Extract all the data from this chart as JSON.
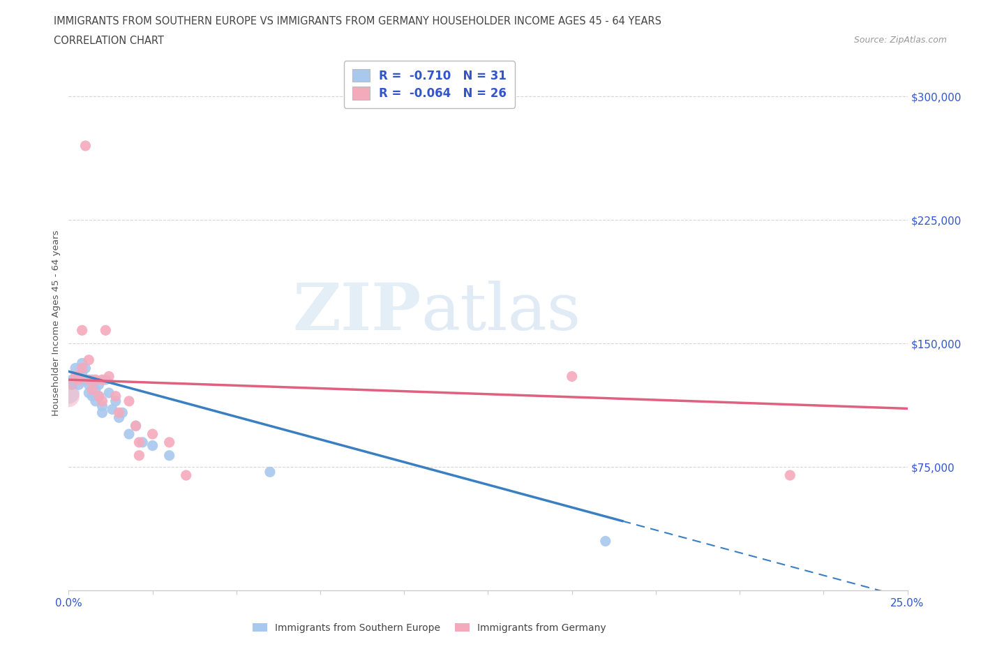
{
  "title_line1": "IMMIGRANTS FROM SOUTHERN EUROPE VS IMMIGRANTS FROM GERMANY HOUSEHOLDER INCOME AGES 45 - 64 YEARS",
  "title_line2": "CORRELATION CHART",
  "source": "Source: ZipAtlas.com",
  "ylabel": "Householder Income Ages 45 - 64 years",
  "xlim": [
    0.0,
    0.25
  ],
  "ylim": [
    0,
    325000
  ],
  "yticks": [
    75000,
    150000,
    225000,
    300000
  ],
  "ytick_labels": [
    "$75,000",
    "$150,000",
    "$225,000",
    "$300,000"
  ],
  "legend_R1": "R =  -0.710",
  "legend_N1": "N = 31",
  "legend_R2": "R =  -0.064",
  "legend_N2": "N = 26",
  "color_blue": "#A8C8EE",
  "color_pink": "#F5AABC",
  "color_blue_line": "#3A7FC1",
  "color_pink_line": "#E06080",
  "color_text": "#3355CC",
  "watermark_zip": "ZIP",
  "watermark_atlas": "atlas",
  "bg_color": "#FFFFFF",
  "grid_color": "#CCCCCC",
  "blue_scatter_x": [
    0.001,
    0.002,
    0.003,
    0.003,
    0.004,
    0.004,
    0.005,
    0.005,
    0.006,
    0.006,
    0.007,
    0.007,
    0.008,
    0.008,
    0.009,
    0.009,
    0.01,
    0.01,
    0.011,
    0.012,
    0.013,
    0.014,
    0.015,
    0.016,
    0.018,
    0.02,
    0.022,
    0.025,
    0.03,
    0.06,
    0.16
  ],
  "blue_scatter_y": [
    128000,
    135000,
    130000,
    125000,
    138000,
    132000,
    128000,
    135000,
    125000,
    120000,
    128000,
    118000,
    122000,
    115000,
    125000,
    118000,
    112000,
    108000,
    128000,
    120000,
    110000,
    115000,
    105000,
    108000,
    95000,
    100000,
    90000,
    88000,
    82000,
    72000,
    30000
  ],
  "pink_scatter_x": [
    0.001,
    0.002,
    0.003,
    0.004,
    0.004,
    0.005,
    0.006,
    0.006,
    0.007,
    0.008,
    0.009,
    0.01,
    0.01,
    0.011,
    0.012,
    0.014,
    0.015,
    0.018,
    0.02,
    0.021,
    0.021,
    0.025,
    0.03,
    0.035,
    0.15,
    0.215
  ],
  "pink_scatter_y": [
    125000,
    130000,
    128000,
    135000,
    158000,
    270000,
    128000,
    140000,
    122000,
    128000,
    118000,
    128000,
    115000,
    158000,
    130000,
    118000,
    108000,
    115000,
    100000,
    90000,
    82000,
    95000,
    90000,
    70000,
    130000,
    70000
  ],
  "blue_R": -0.71,
  "pink_R": -0.064,
  "blue_intercept": 133000,
  "blue_slope": -550000,
  "pink_intercept": 128000,
  "pink_slope": -70000
}
